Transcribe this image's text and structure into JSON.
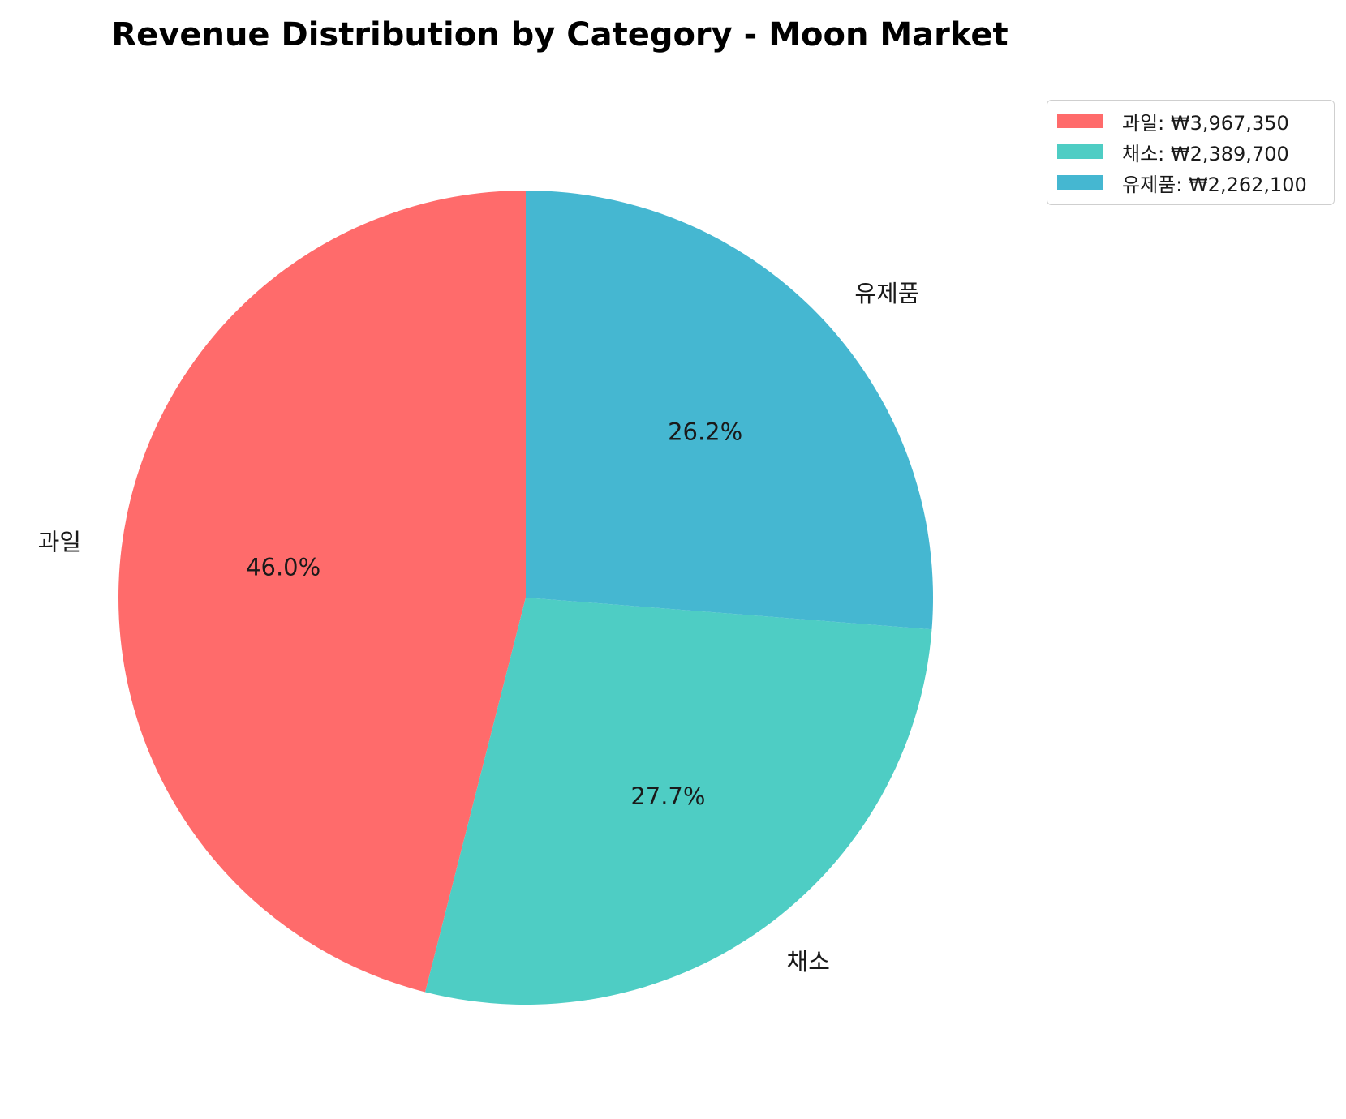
{
  "chart_data": {
    "type": "pie",
    "title": "Revenue Distribution by Category - Moon Market",
    "start_angle_deg": 90,
    "direction": "counterclockwise",
    "slices": [
      {
        "label": "과일",
        "value": 3967350,
        "percent_label": "46.0%",
        "legend_label": "과일: ₩3,967,350",
        "color": "#FF6B6B"
      },
      {
        "label": "채소",
        "value": 2389700,
        "percent_label": "27.7%",
        "legend_label": "채소: ₩2,389,700",
        "color": "#4ECDC4"
      },
      {
        "label": "유제품",
        "value": 2262100,
        "percent_label": "26.2%",
        "legend_label": "유제품: ₩2,262,100",
        "color": "#45B7D1"
      }
    ],
    "legend_position": "upper-right-outside"
  }
}
